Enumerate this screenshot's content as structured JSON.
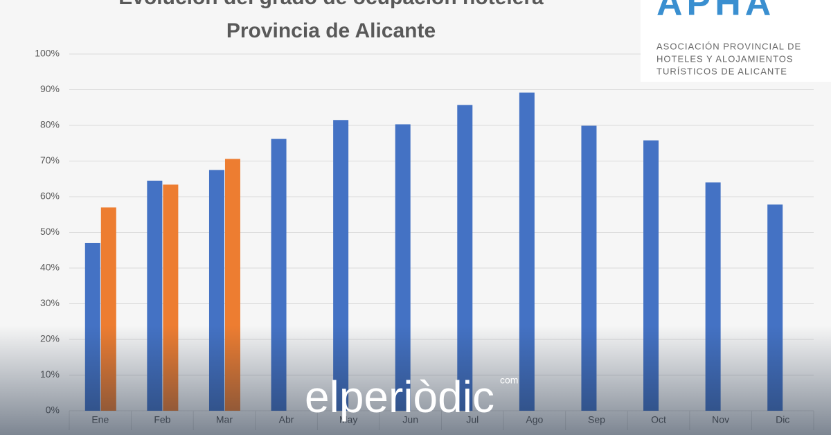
{
  "chart_data": {
    "type": "bar",
    "title": "Evolución del grado de ocupación hotelera",
    "subtitle": "Provincia de Alicante",
    "categories": [
      "Ene",
      "Feb",
      "Mar",
      "Abr",
      "May",
      "Jun",
      "Jul",
      "Ago",
      "Sep",
      "Oct",
      "Nov",
      "Dic"
    ],
    "series": [
      {
        "color": "#4472c4",
        "values": [
          47,
          64.5,
          67.5,
          76.2,
          81.5,
          80.3,
          85.7,
          89.2,
          79.9,
          75.8,
          64,
          57.8
        ]
      },
      {
        "color": "#ed7d31",
        "values": [
          57,
          63.4,
          70.6,
          null,
          null,
          null,
          null,
          null,
          null,
          null,
          null,
          null
        ]
      }
    ],
    "ylim": [
      0,
      100
    ],
    "yticks": [
      {
        "value": 0,
        "label": "0%"
      },
      {
        "value": 10,
        "label": "10%"
      },
      {
        "value": 20,
        "label": "20%"
      },
      {
        "value": 30,
        "label": "30%"
      },
      {
        "value": 40,
        "label": "40%"
      },
      {
        "value": 50,
        "label": "50%"
      },
      {
        "value": 60,
        "label": "60%"
      },
      {
        "value": 70,
        "label": "70%"
      },
      {
        "value": 80,
        "label": "80%"
      },
      {
        "value": 90,
        "label": "90%"
      },
      {
        "value": 100,
        "label": "100%"
      }
    ],
    "grid": true
  },
  "logo": {
    "name": "APHA",
    "lines": [
      "ASOCIACIÓN PROVINCIAL DE",
      "HOTELES Y ALOJAMIENTOS",
      "TURÍSTICOS DE ALICANTE"
    ]
  },
  "watermark": {
    "text": "elperiòdic",
    "suffix": "com"
  }
}
